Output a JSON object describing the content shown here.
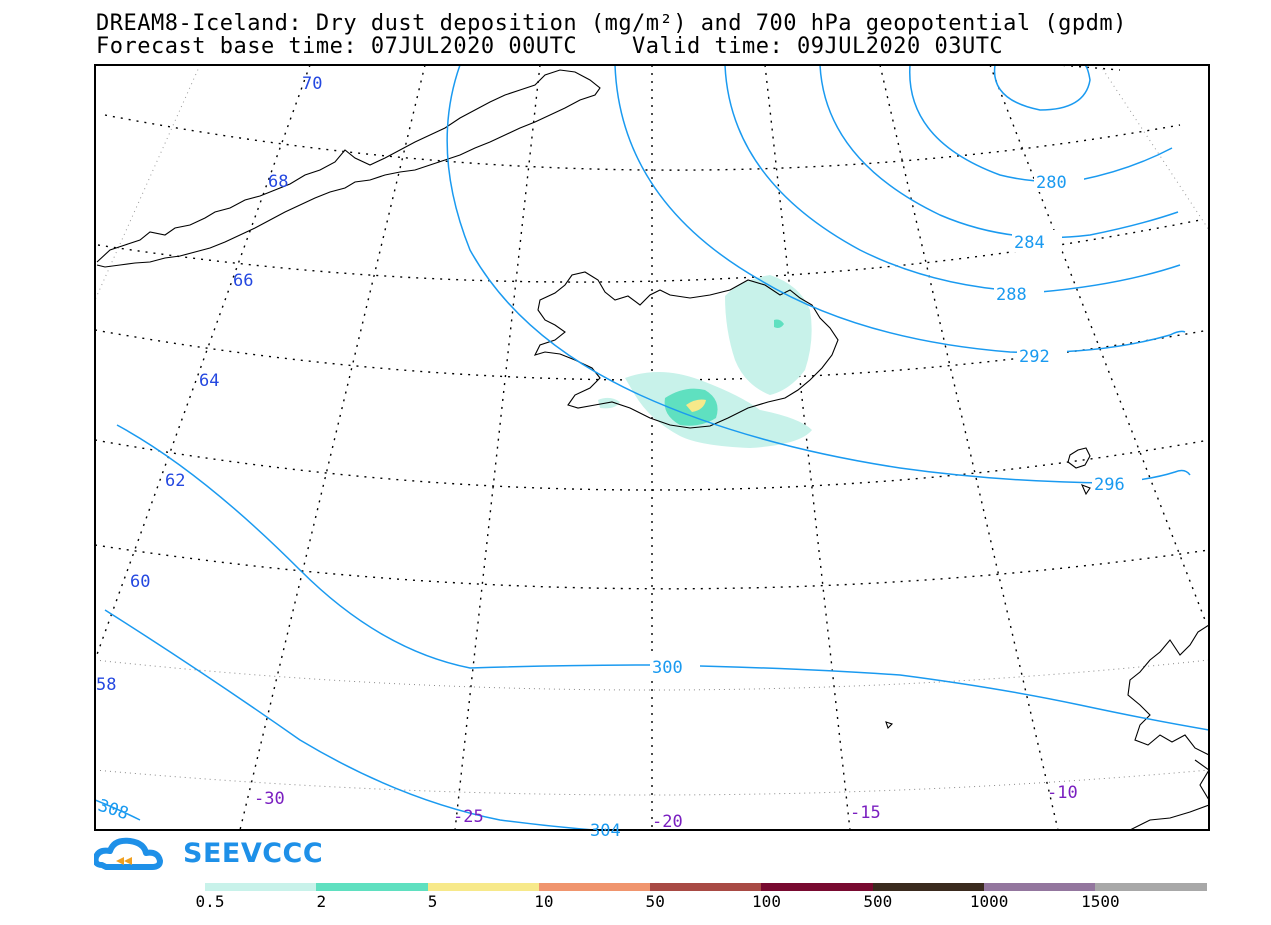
{
  "title_line1": "DREAM8-Iceland: Dry dust deposition (mg/m²) and 700 hPa geopotential (gpdm)",
  "title_line2": "Forecast base time: 07JUL2020 00UTC    Valid time: 09JUL2020 03UTC",
  "logo_text": "SEEVCCC",
  "colors": {
    "contour": "#1a9af0",
    "lat_label": "#2448e0",
    "lon_label": "#7a1fc0",
    "coast": "#000000"
  },
  "colorbar": {
    "colors": [
      "#c8f2ea",
      "#5fe0c0",
      "#f7e98a",
      "#f0956e",
      "#a84a44",
      "#780a30",
      "#3a2a1e",
      "#93769e",
      "#a8a8a8"
    ],
    "labels": [
      "0.5",
      "2",
      "5",
      "10",
      "50",
      "100",
      "500",
      "1000",
      "1500"
    ]
  },
  "lat_labels": [
    "70",
    "68",
    "66",
    "64",
    "62",
    "60",
    "58"
  ],
  "lon_labels": [
    "-30",
    "-25",
    "-20",
    "-15",
    "-10"
  ],
  "contour_labels": [
    "280",
    "284",
    "288",
    "292",
    "296",
    "300",
    "304",
    "308"
  ]
}
